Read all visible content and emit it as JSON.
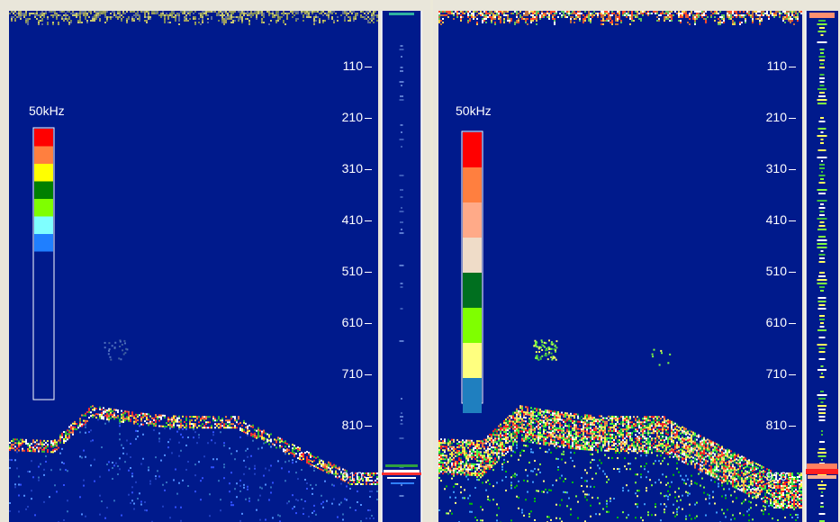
{
  "colors": {
    "water": "#001a8c",
    "frame": "#e9e6da",
    "white": "#ffffff"
  },
  "left_panel": {
    "frequency_label": "50kHz",
    "depth_scale": [
      "110",
      "210",
      "310",
      "410",
      "510",
      "610",
      "710",
      "810",
      "910"
    ],
    "legend_colors": [
      "#ff0000",
      "#ff7f3f",
      "#ffff00",
      "#007f00",
      "#7fff00",
      "#7fffff",
      "#1f7fff",
      "#001a8c"
    ],
    "legend_colors_note": "top to bottom; bottom part extends with water color"
  },
  "right_panel": {
    "frequency_label": "50kHz",
    "depth_scale": [
      "110",
      "210",
      "310",
      "410",
      "510",
      "610",
      "710",
      "810",
      "910"
    ],
    "legend_colors": [
      "#ff0000",
      "#ff7f3f",
      "#ffaa88",
      "#efdcc8",
      "#006f1f",
      "#7fff00",
      "#ffff7f",
      "#1f7fbf"
    ]
  }
}
